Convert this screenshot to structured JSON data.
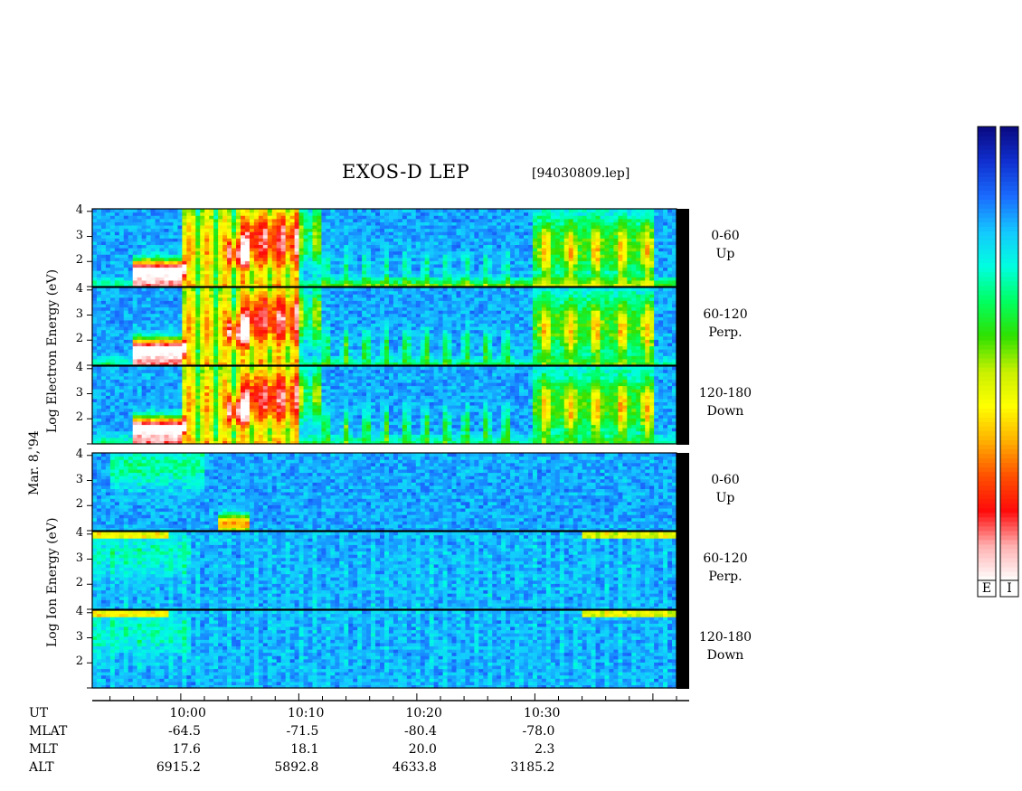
{
  "chart_data": {
    "type": "heatmap",
    "title": "EXOS-D LEP",
    "file_label": "[94030809.lep]",
    "date_label": "Mar. 8,'94",
    "panel_groups": [
      {
        "ylabel_lines": [
          "Log",
          "Electron",
          "Energy",
          "(eV)"
        ]
      },
      {
        "ylabel_lines": [
          "Log",
          "Ion",
          "Energy",
          "(eV)"
        ]
      }
    ],
    "panels": [
      {
        "group": "Electron",
        "channel": [
          "0-60",
          "Up"
        ]
      },
      {
        "group": "Electron",
        "channel": [
          "60-120",
          "Perp."
        ]
      },
      {
        "group": "Electron",
        "channel": [
          "120-180",
          "Down"
        ]
      },
      {
        "group": "Ion",
        "channel": [
          "0-60",
          "Up"
        ]
      },
      {
        "group": "Ion",
        "channel": [
          "60-120",
          "Perp."
        ]
      },
      {
        "group": "Ion",
        "channel": [
          "120-180",
          "Down"
        ]
      }
    ],
    "y_ticks": [
      4,
      3,
      2
    ],
    "ylim": [
      1,
      4.1
    ],
    "x_ticks": [
      "10:00",
      "10:10",
      "10:20",
      "10:30"
    ],
    "xlim_minutes": [
      -7.5,
      42
    ],
    "orbit_rows": [
      {
        "label": "UT",
        "values": []
      },
      {
        "label": "MLAT",
        "values": [
          "-64.5",
          "-71.5",
          "-80.4",
          "-78.0"
        ]
      },
      {
        "label": "MLT",
        "values": [
          "17.6",
          "18.1",
          "20.0",
          "2.3"
        ]
      },
      {
        "label": "ALT",
        "values": [
          "6915.2",
          "5892.8",
          "4633.8",
          "3185.2"
        ]
      }
    ],
    "colorbars": [
      "E",
      "I"
    ],
    "colorscale": [
      "#0a0a80",
      "#1030d0",
      "#1a6cff",
      "#14c8ff",
      "#00ffe0",
      "#00ff60",
      "#30e000",
      "#c8f000",
      "#ffff00",
      "#ffb000",
      "#ff5000",
      "#ff0a0a",
      "#ffb0b0",
      "#ffffff"
    ]
  }
}
